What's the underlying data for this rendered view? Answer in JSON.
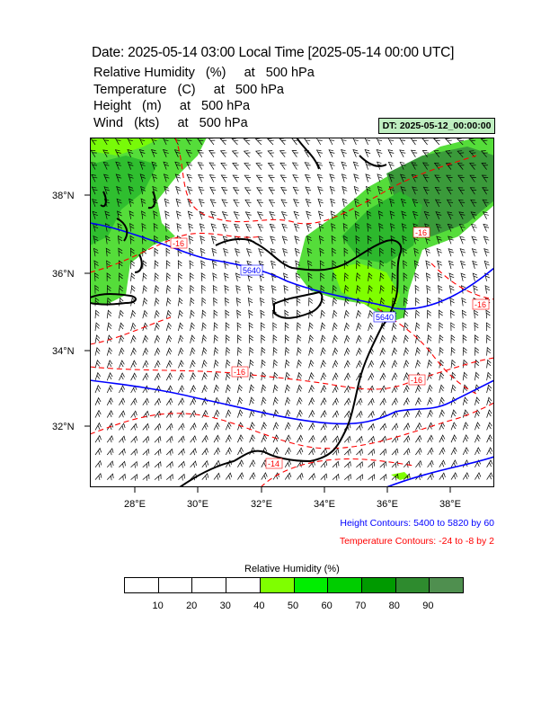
{
  "title": "Date: 2025-05-14  03:00 Local Time [2025-05-14  00:00 UTC]",
  "fields": [
    "Relative Humidity   (%)     at   500 hPa",
    "Temperature   (C)     at   500 hPa",
    "Height   (m)     at   500 hPa",
    "Wind   (kts)     at   500 hPa"
  ],
  "dt_badge": "DT: 2025-05-12_00:00:00",
  "map": {
    "lat_ticks": [
      "38°N",
      "36°N",
      "34°N",
      "32°N"
    ],
    "lon_ticks": [
      "28°E",
      "30°E",
      "32°E",
      "34°E",
      "36°E",
      "38°E"
    ],
    "height_labels": [
      "5640",
      "5640"
    ],
    "temp_labels": [
      "-16",
      "-16",
      "-16",
      "-14",
      "-16",
      "-16"
    ],
    "colors": {
      "height_contour": "#0000ff",
      "temp_contour": "#ff0000",
      "coastline": "#000000",
      "wind_barb": "#000000"
    }
  },
  "legend_notes": {
    "height": "Height Contours: 5400 to 5820 by 60",
    "temperature": "Temperature Contours: -24 to -8 by 2"
  },
  "colorbar": {
    "title": "Relative Humidity  (%)",
    "labels": [
      "10",
      "20",
      "30",
      "40",
      "50",
      "60",
      "70",
      "80",
      "90"
    ],
    "colors": [
      "#ffffff",
      "#ffffff",
      "#ffffff",
      "#ffffff",
      "#7fff00",
      "#00ee00",
      "#00cd00",
      "#009a00",
      "#2e8b2e",
      "#4f8f4f"
    ]
  }
}
